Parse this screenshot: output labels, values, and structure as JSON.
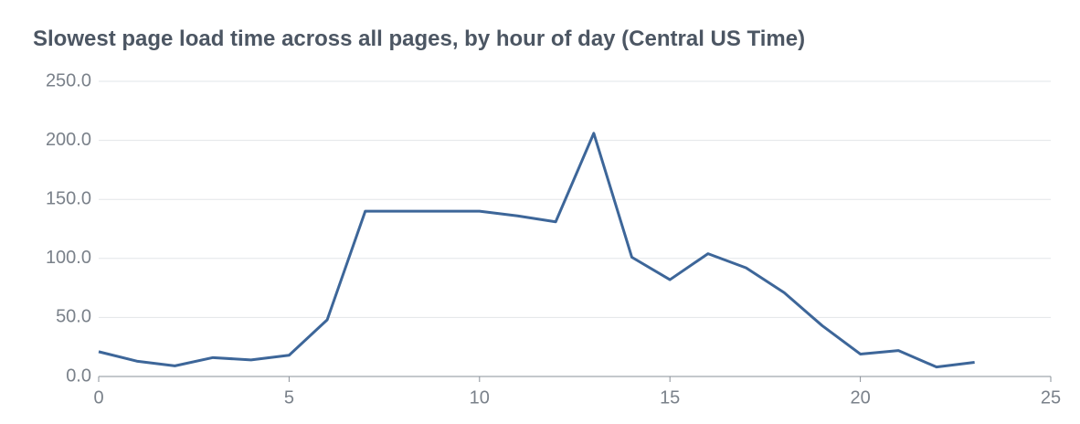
{
  "chart_data": {
    "type": "line",
    "title": "Slowest page load time across all pages, by hour of day (Central US Time)",
    "x": [
      0,
      1,
      2,
      3,
      4,
      5,
      6,
      7,
      8,
      9,
      10,
      11,
      12,
      13,
      14,
      15,
      16,
      17,
      18,
      19,
      20,
      21,
      22,
      23
    ],
    "series": [
      {
        "color": "#3d6699",
        "values": [
          21,
          13,
          9,
          16,
          14,
          18,
          48,
          140,
          140,
          140,
          140,
          136,
          131,
          206,
          101,
          82,
          104,
          92,
          71,
          43,
          19,
          22,
          8,
          12
        ]
      }
    ],
    "xlim": [
      0,
      25
    ],
    "xticks": [
      0,
      5,
      10,
      15,
      20,
      25
    ],
    "ylim": [
      0,
      250
    ],
    "yticks": [
      {
        "value": 0,
        "label": "0.0"
      },
      {
        "value": 50,
        "label": "50.0"
      },
      {
        "value": 100,
        "label": "100.0"
      },
      {
        "value": 150,
        "label": "150.0"
      },
      {
        "value": 200,
        "label": "200.0"
      },
      {
        "value": 250,
        "label": "250.0"
      }
    ],
    "grid": true
  }
}
